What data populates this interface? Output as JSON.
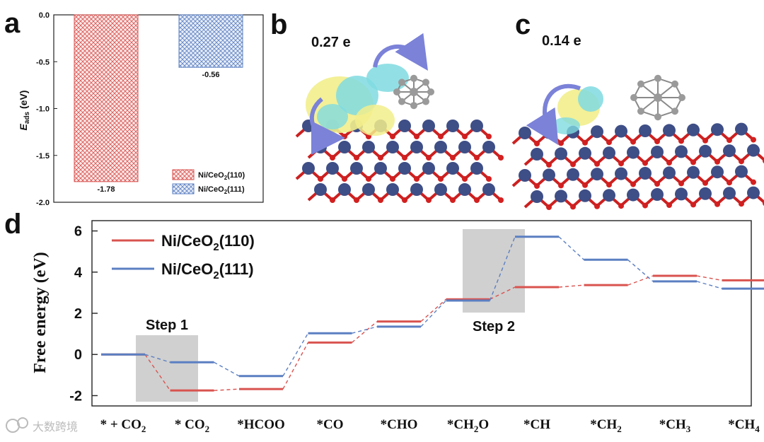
{
  "panels": {
    "a": "a",
    "b": "b",
    "c": "c",
    "d": "d"
  },
  "images": {
    "b_charge": "0.27 e",
    "c_charge": "0.14 e"
  },
  "colors": {
    "red": "#d9534f",
    "blue": "#5b7fc2",
    "gray_box": "#d0d0d0"
  },
  "watermark": "大数跨境",
  "chart_data": [
    {
      "type": "bar",
      "panel": "a",
      "ylabel_main": "E",
      "ylabel_sub": "ads",
      "ylabel_unit": " (eV)",
      "ylim": [
        -2.0,
        0.0
      ],
      "yticks": [
        "0.0",
        "-0.5",
        "-1.0",
        "-1.5",
        "-2.0"
      ],
      "categories": [
        "Ni/CeO2(110)",
        "Ni/CeO2(111)"
      ],
      "values": [
        -1.78,
        -0.56
      ],
      "value_labels": [
        "-1.78",
        "-0.56"
      ],
      "legend": [
        {
          "main": "Ni/CeO",
          "sub": "2",
          "rest": "(110)"
        },
        {
          "main": "Ni/CeO",
          "sub": "2",
          "rest": "(111)"
        }
      ],
      "legend_position": "bottom-right"
    },
    {
      "type": "line",
      "panel": "d",
      "ylabel": "Free energy (eV)",
      "ylim": [
        -2.5,
        6.5
      ],
      "yticks": [
        "6",
        "4",
        "2",
        "0",
        "-2"
      ],
      "categories": [
        {
          "pre": "* + CO",
          "sub": "2",
          "post": ""
        },
        {
          "pre": "* CO",
          "sub": "2",
          "post": ""
        },
        {
          "pre": "*HCOO",
          "sub": "",
          "post": ""
        },
        {
          "pre": "*CO",
          "sub": "",
          "post": ""
        },
        {
          "pre": "*CHO",
          "sub": "",
          "post": ""
        },
        {
          "pre": "*CH",
          "sub": "2",
          "post": "O"
        },
        {
          "pre": "*CH",
          "sub": "",
          "post": ""
        },
        {
          "pre": "*CH",
          "sub": "2",
          "post": ""
        },
        {
          "pre": "*CH",
          "sub": "3",
          "post": ""
        },
        {
          "pre": "*CH",
          "sub": "4",
          "post": ""
        }
      ],
      "series": [
        {
          "name": {
            "main": "Ni/CeO",
            "sub": "2",
            "rest": "(110)"
          },
          "values": [
            0.0,
            -1.75,
            -1.68,
            0.58,
            1.6,
            2.68,
            3.27,
            3.37,
            3.82,
            3.6
          ]
        },
        {
          "name": {
            "main": "Ni/CeO",
            "sub": "2",
            "rest": "(111)"
          },
          "values": [
            0.0,
            -0.38,
            -1.05,
            1.03,
            1.35,
            2.62,
            5.72,
            4.6,
            3.55,
            3.2
          ]
        }
      ],
      "annotations": [
        {
          "text": "Step 1",
          "from": 0,
          "to": 1
        },
        {
          "text": "Step 2",
          "from": 5,
          "to": 6
        }
      ],
      "legend_position": "top-left"
    }
  ]
}
